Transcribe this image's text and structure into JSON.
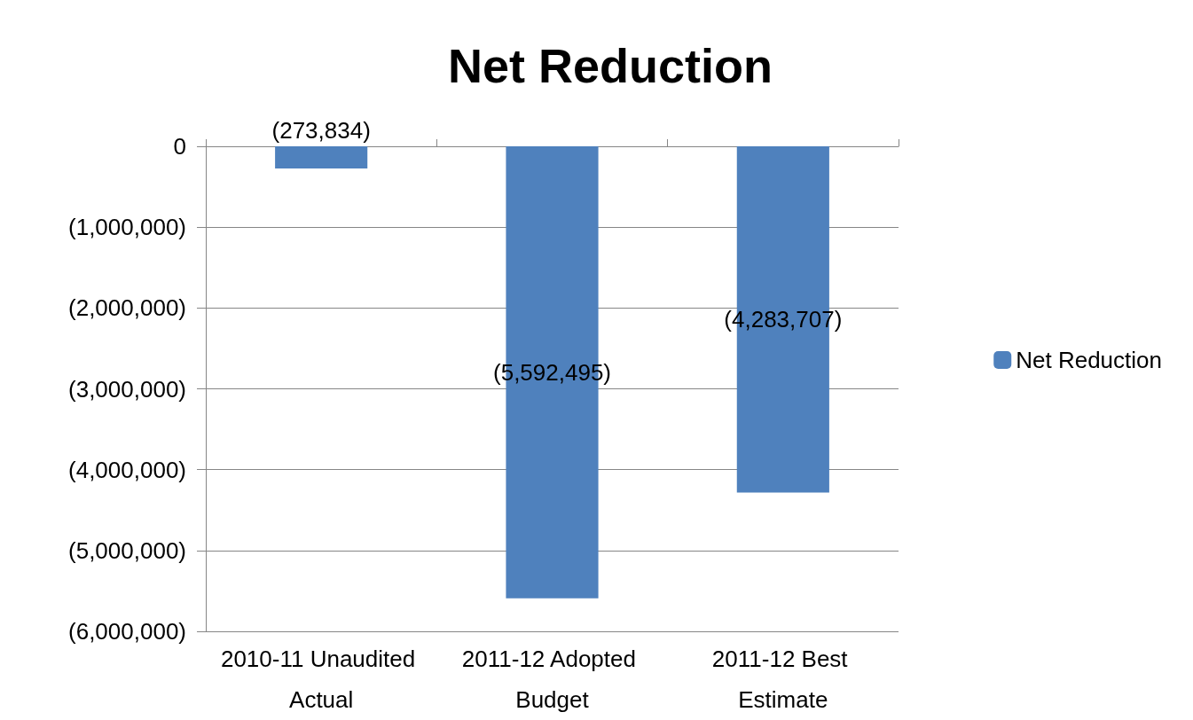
{
  "chart_data": {
    "type": "bar",
    "title": "Net Reduction",
    "categories": [
      "2010-11 Unaudited Actual",
      "2011-12 Adopted Budget",
      "2011-12 Best Estimate"
    ],
    "series": [
      {
        "name": "Net Reduction",
        "color": "#4f81bd",
        "values": [
          -273834,
          -5592495,
          -4283707
        ],
        "value_labels": [
          "(273,834)",
          "(5,592,495)",
          "(4,283,707)"
        ]
      }
    ],
    "ylim": [
      -6000000,
      0
    ],
    "yticks": [
      {
        "value": 0,
        "label": "0"
      },
      {
        "value": -1000000,
        "label": "(1,000,000)"
      },
      {
        "value": -2000000,
        "label": "(2,000,000)"
      },
      {
        "value": -3000000,
        "label": "(3,000,000)"
      },
      {
        "value": -4000000,
        "label": "(4,000,000)"
      },
      {
        "value": -5000000,
        "label": "(5,000,000)"
      },
      {
        "value": -6000000,
        "label": "(6,000,000)"
      }
    ],
    "grid": "y",
    "legend": "right"
  }
}
